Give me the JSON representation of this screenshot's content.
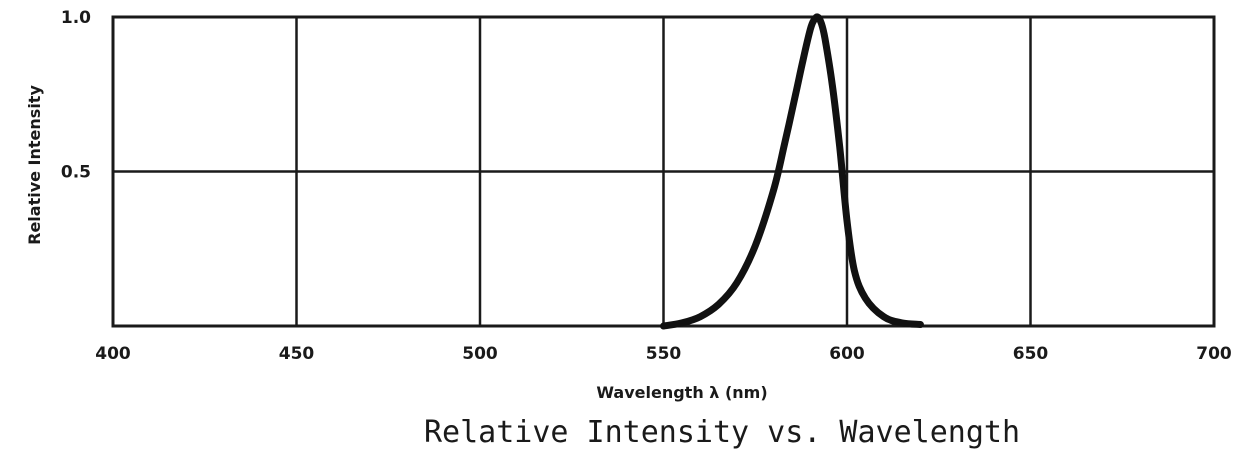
{
  "chart_data": {
    "type": "line",
    "title": "Relative Intensity vs. Wavelength",
    "xlabel": "Wavelength λ (nm)",
    "ylabel": "Relative Intensity",
    "xlim": [
      400,
      700
    ],
    "ylim": [
      0,
      1.0
    ],
    "x_ticks": [
      "400",
      "450",
      "500",
      "550",
      "600",
      "650",
      "700"
    ],
    "y_ticks": [
      "0.5",
      "1.0"
    ],
    "grid": true,
    "series": [
      {
        "x": [
          550,
          555,
          560,
          565,
          570,
          575,
          580,
          583,
          586,
          588,
          590,
          591,
          592,
          593,
          594,
          596,
          598,
          600,
          602,
          605,
          610,
          615,
          620
        ],
        "y": [
          0.0,
          0.01,
          0.03,
          0.07,
          0.14,
          0.26,
          0.44,
          0.59,
          0.75,
          0.86,
          0.96,
          0.99,
          1.0,
          0.98,
          0.93,
          0.78,
          0.58,
          0.34,
          0.18,
          0.09,
          0.03,
          0.01,
          0.005
        ]
      }
    ]
  }
}
